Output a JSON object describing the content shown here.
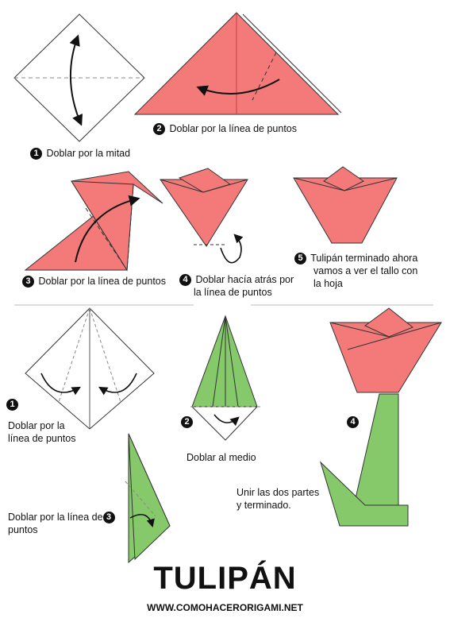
{
  "colors": {
    "flower": "#f47a7a",
    "stem": "#86c96a",
    "ink": "#111111",
    "fold_line": "#888888"
  },
  "steps": {
    "s1": {
      "num": "1",
      "text": "Doblar por la mitad"
    },
    "s2": {
      "num": "2",
      "text": "Doblar por la línea de puntos"
    },
    "s3": {
      "num": "3",
      "text": "Doblar por la línea de puntos"
    },
    "s4": {
      "num": "4",
      "line1": "Doblar hacía atrás por",
      "line2": "la línea de puntos"
    },
    "s5": {
      "num": "5",
      "line1": "Tulipán terminado ahora",
      "line2": "vamos a ver el tallo con",
      "line3": "la hoja"
    }
  },
  "stem_steps": {
    "s1": {
      "num": "1",
      "line1": "Doblar por la",
      "line2": "línea de puntos"
    },
    "s2": {
      "num": "2",
      "text": "Doblar al medio"
    },
    "s3": {
      "num": "3",
      "line1": "Doblar por la línea de",
      "line2": "puntos"
    },
    "s4": {
      "num": "4",
      "line1": "Unir las dos partes",
      "line2": "y terminado."
    }
  },
  "title": "TULIPÁN",
  "website": "WWW.COMOHACERORIGAMI.NET"
}
